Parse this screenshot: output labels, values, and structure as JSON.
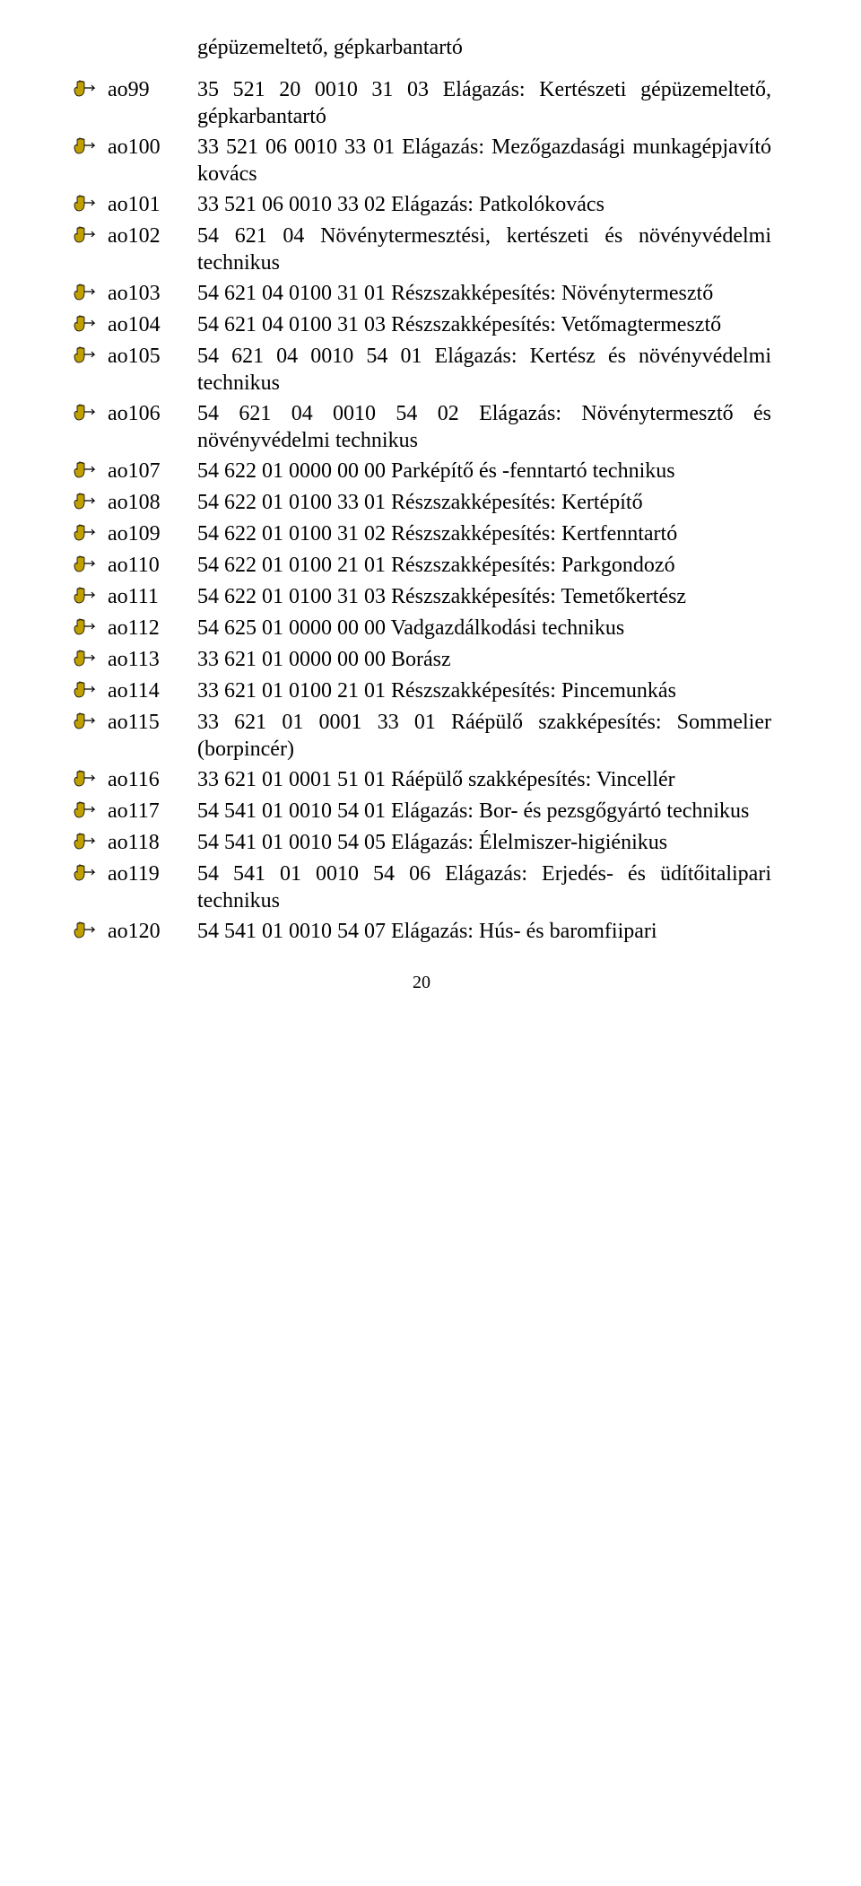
{
  "heading": "gépüzemeltető, gépkarbantartó",
  "icon_color": "#c0a000",
  "page_number": "20",
  "rows": [
    {
      "label": "ao99",
      "text": "35 521 20 0010 31 03 Elágazás: Kertészeti gépüzemeltető, gépkarbantartó"
    },
    {
      "label": "ao100",
      "text": "33 521 06 0010 33 01 Elágazás: Mezőgazdasági munkagépjavító kovács"
    },
    {
      "label": "ao101",
      "text": "33 521 06 0010 33 02 Elágazás: Patkolókovács"
    },
    {
      "label": "ao102",
      "text": "54 621 04 Növénytermesztési, kertészeti és növényvédelmi technikus"
    },
    {
      "label": "ao103",
      "text": "54 621 04 0100 31 01 Részszakképesítés: Növénytermesztő"
    },
    {
      "label": "ao104",
      "text": "54 621 04 0100 31 03 Részszakképesítés: Vetőmagtermesztő"
    },
    {
      "label": "ao105",
      "text": "54 621 04 0010 54 01 Elágazás: Kertész és növényvédelmi technikus"
    },
    {
      "label": "ao106",
      "text": "54 621 04 0010 54 02 Elágazás: Növénytermesztő és növényvédelmi technikus"
    },
    {
      "label": "ao107",
      "text": "54 622 01 0000 00 00 Parképítő és -fenntartó technikus"
    },
    {
      "label": "ao108",
      "text": "54 622 01 0100 33 01 Részszakképesítés: Kertépítő"
    },
    {
      "label": "ao109",
      "text": "54 622 01 0100 31 02 Részszakképesítés: Kertfenntartó"
    },
    {
      "label": "ao110",
      "text": "54 622 01 0100 21 01 Részszakképesítés: Parkgondozó"
    },
    {
      "label": "ao111",
      "text": "54 622 01 0100 31 03 Részszakképesítés: Temetőkertész"
    },
    {
      "label": "ao112",
      "text": "54 625 01 0000 00 00 Vadgazdálkodási technikus"
    },
    {
      "label": "ao113",
      "text": "33 621 01 0000 00 00 Borász"
    },
    {
      "label": "ao114",
      "text": "33 621 01 0100 21 01 Részszakképesítés: Pincemunkás"
    },
    {
      "label": "ao115",
      "text": "33 621 01 0001 33 01 Ráépülő szakképesítés: Sommelier (borpincér)"
    },
    {
      "label": "ao116",
      "text": "33 621 01 0001 51 01 Ráépülő szakképesítés: Vincellér"
    },
    {
      "label": "ao117",
      "text": "54 541 01 0010 54 01 Elágazás: Bor- és pezsgőgyártó technikus"
    },
    {
      "label": "ao118",
      "text": "54 541 01 0010 54 05 Elágazás: Élelmiszer-higiénikus"
    },
    {
      "label": "ao119",
      "text": "54 541 01 0010 54 06 Elágazás: Erjedés- és üdítőitalipari technikus"
    },
    {
      "label": "ao120",
      "text": "54 541 01 0010 54 07 Elágazás: Hús- és baromfiipari"
    }
  ]
}
